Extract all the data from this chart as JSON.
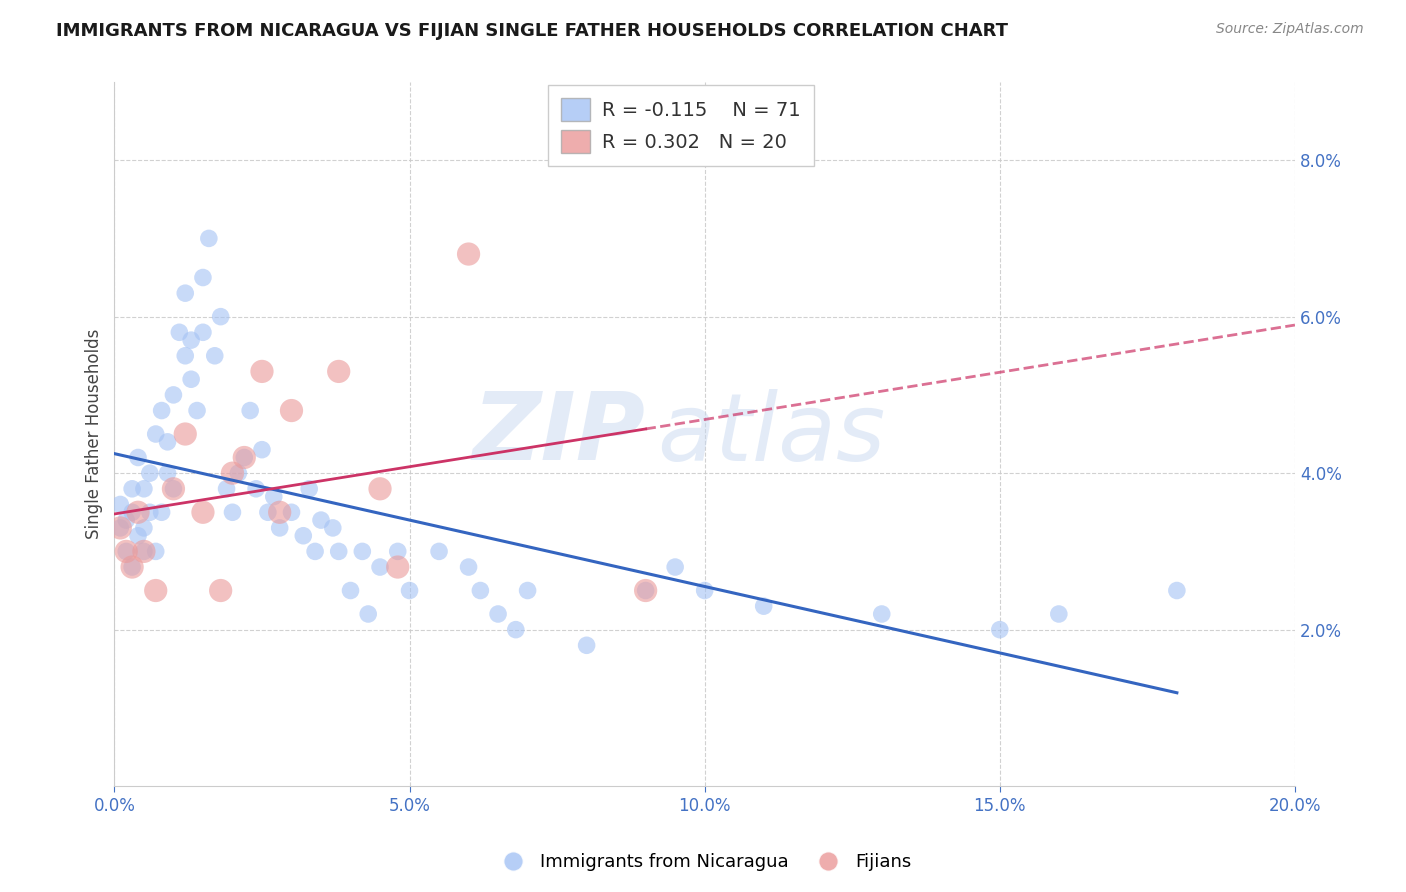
{
  "title": "IMMIGRANTS FROM NICARAGUA VS FIJIAN SINGLE FATHER HOUSEHOLDS CORRELATION CHART",
  "source": "Source: ZipAtlas.com",
  "ylabel": "Single Father Households",
  "xlim": [
    0.0,
    0.2
  ],
  "ylim": [
    0.0,
    0.09
  ],
  "xticks": [
    0.0,
    0.05,
    0.1,
    0.15,
    0.2
  ],
  "xtick_labels": [
    "0.0%",
    "5.0%",
    "10.0%",
    "15.0%",
    "20.0%"
  ],
  "yticks": [
    0.02,
    0.04,
    0.06,
    0.08
  ],
  "ytick_labels": [
    "2.0%",
    "4.0%",
    "6.0%",
    "8.0%"
  ],
  "blue_R": -0.115,
  "blue_N": 71,
  "pink_R": 0.302,
  "pink_N": 20,
  "blue_color": "#a4c2f4",
  "pink_color": "#ea9999",
  "line_blue": "#3465c0",
  "line_pink": "#cc3366",
  "watermark_zip": "ZIP",
  "watermark_atlas": "atlas",
  "title_color": "#1a1a1a",
  "axis_color": "#4472c4",
  "legend_label_blue": "Immigrants from Nicaragua",
  "legend_label_pink": "Fijians",
  "blue_scatter_x": [
    0.001,
    0.001,
    0.002,
    0.002,
    0.003,
    0.003,
    0.003,
    0.004,
    0.004,
    0.005,
    0.005,
    0.005,
    0.006,
    0.006,
    0.007,
    0.007,
    0.008,
    0.008,
    0.009,
    0.009,
    0.01,
    0.01,
    0.011,
    0.012,
    0.012,
    0.013,
    0.013,
    0.014,
    0.015,
    0.015,
    0.016,
    0.017,
    0.018,
    0.019,
    0.02,
    0.021,
    0.022,
    0.023,
    0.024,
    0.025,
    0.026,
    0.027,
    0.028,
    0.03,
    0.032,
    0.033,
    0.034,
    0.035,
    0.037,
    0.038,
    0.04,
    0.042,
    0.043,
    0.045,
    0.048,
    0.05,
    0.055,
    0.06,
    0.062,
    0.065,
    0.068,
    0.07,
    0.08,
    0.09,
    0.095,
    0.1,
    0.11,
    0.13,
    0.15,
    0.16,
    0.18
  ],
  "blue_scatter_y": [
    0.033,
    0.036,
    0.03,
    0.034,
    0.038,
    0.035,
    0.028,
    0.032,
    0.042,
    0.03,
    0.033,
    0.038,
    0.035,
    0.04,
    0.045,
    0.03,
    0.048,
    0.035,
    0.044,
    0.04,
    0.05,
    0.038,
    0.058,
    0.055,
    0.063,
    0.052,
    0.057,
    0.048,
    0.065,
    0.058,
    0.07,
    0.055,
    0.06,
    0.038,
    0.035,
    0.04,
    0.042,
    0.048,
    0.038,
    0.043,
    0.035,
    0.037,
    0.033,
    0.035,
    0.032,
    0.038,
    0.03,
    0.034,
    0.033,
    0.03,
    0.025,
    0.03,
    0.022,
    0.028,
    0.03,
    0.025,
    0.03,
    0.028,
    0.025,
    0.022,
    0.02,
    0.025,
    0.018,
    0.025,
    0.028,
    0.025,
    0.023,
    0.022,
    0.02,
    0.022,
    0.025
  ],
  "pink_scatter_x": [
    0.001,
    0.002,
    0.003,
    0.004,
    0.005,
    0.007,
    0.01,
    0.012,
    0.015,
    0.018,
    0.02,
    0.022,
    0.025,
    0.028,
    0.03,
    0.038,
    0.045,
    0.048,
    0.06,
    0.09
  ],
  "pink_scatter_y": [
    0.033,
    0.03,
    0.028,
    0.035,
    0.03,
    0.025,
    0.038,
    0.045,
    0.035,
    0.025,
    0.04,
    0.042,
    0.053,
    0.035,
    0.048,
    0.053,
    0.038,
    0.028,
    0.068,
    0.025
  ],
  "blue_dot_size": 160,
  "pink_dot_size": 280
}
